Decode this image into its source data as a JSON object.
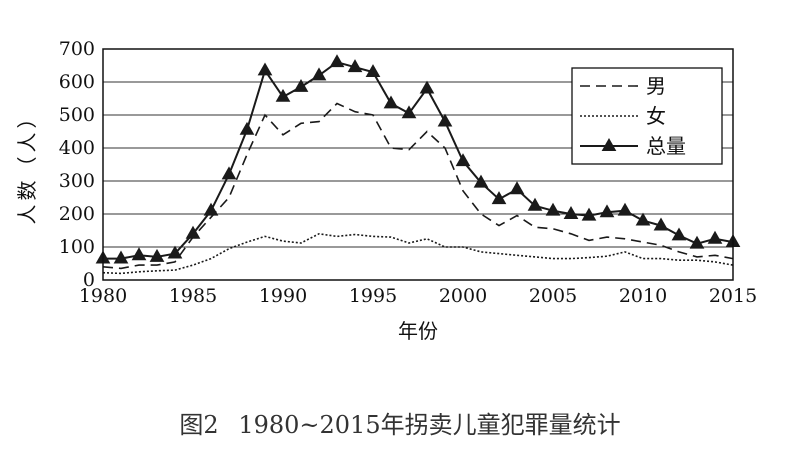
{
  "caption": {
    "figure_number": "图2",
    "title": "1980~2015年拐卖儿童犯罪量统计"
  },
  "chart_data": {
    "type": "line",
    "xlabel": "年份",
    "ylabel": "人数（人）",
    "xlim": [
      1980,
      2015
    ],
    "ylim": [
      0,
      700
    ],
    "x_ticks": [
      1980,
      1985,
      1990,
      1995,
      2000,
      2005,
      2010,
      2015
    ],
    "y_ticks": [
      0,
      100,
      200,
      300,
      400,
      500,
      600,
      700
    ],
    "grid": "horizontal",
    "legend_position": "top-right",
    "x": [
      1980,
      1981,
      1982,
      1983,
      1984,
      1985,
      1986,
      1987,
      1988,
      1989,
      1990,
      1991,
      1992,
      1993,
      1994,
      1995,
      1996,
      1997,
      1998,
      1999,
      2000,
      2001,
      2002,
      2003,
      2004,
      2005,
      2006,
      2007,
      2008,
      2009,
      2010,
      2011,
      2012,
      2013,
      2014,
      2015
    ],
    "series": [
      {
        "name": "男",
        "style": "dashed",
        "values": [
          40,
          35,
          45,
          45,
          55,
          130,
          190,
          250,
          380,
          500,
          440,
          475,
          480,
          535,
          510,
          500,
          400,
          395,
          450,
          400,
          270,
          200,
          165,
          195,
          160,
          155,
          140,
          120,
          130,
          125,
          115,
          105,
          85,
          70,
          75,
          65
        ]
      },
      {
        "name": "女",
        "style": "dotted",
        "values": [
          22,
          20,
          25,
          28,
          30,
          45,
          65,
          95,
          115,
          132,
          118,
          112,
          140,
          132,
          138,
          132,
          130,
          112,
          125,
          100,
          100,
          85,
          80,
          75,
          70,
          65,
          65,
          68,
          72,
          85,
          65,
          65,
          60,
          60,
          55,
          45
        ]
      },
      {
        "name": "总量",
        "style": "solid-triangle",
        "values": [
          65,
          65,
          75,
          70,
          80,
          140,
          210,
          320,
          455,
          635,
          555,
          585,
          620,
          660,
          645,
          630,
          535,
          505,
          580,
          480,
          360,
          295,
          245,
          275,
          225,
          210,
          200,
          195,
          205,
          210,
          180,
          165,
          135,
          110,
          125,
          115
        ]
      }
    ],
    "colors": {
      "line": "#1a1a1a",
      "grid": "#333333"
    }
  }
}
